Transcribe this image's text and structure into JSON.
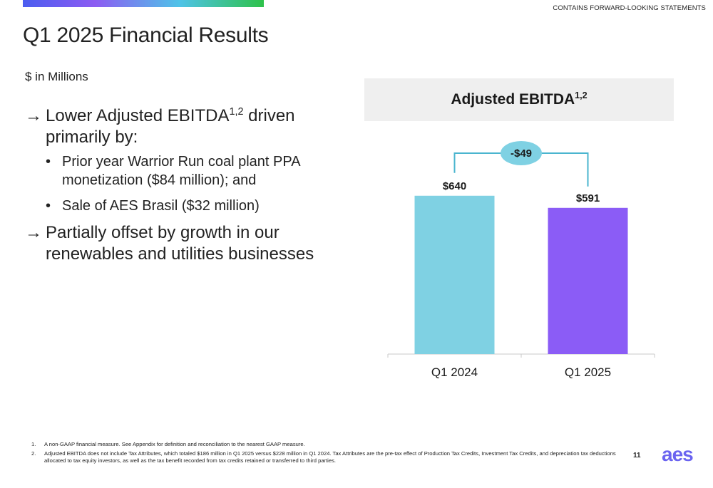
{
  "header": {
    "disclaimer": "CONTAINS FORWARD-LOOKING STATEMENTS",
    "title": "Q1 2025 Financial Results"
  },
  "units": "$ in Millions",
  "bullets": {
    "arrow_icon": "→",
    "bullet_icon": "•",
    "main1_pre": "Lower Adjusted EBITDA",
    "main1_sup": "1,2",
    "main1_post": " driven primarily by:",
    "sub": [
      "Prior year Warrior Run coal plant PPA monetization ($84 million); and",
      "Sale of AES Brasil ($32 million)"
    ],
    "main2": "Partially offset by growth in our renewables and utilities businesses"
  },
  "chart_data": {
    "type": "bar",
    "title": "Adjusted EBITDA",
    "title_sup": "1,2",
    "categories": [
      "Q1 2024",
      "Q1 2025"
    ],
    "values": [
      640,
      591
    ],
    "value_labels": [
      "$640",
      "$591"
    ],
    "colors": [
      "#7fd1e3",
      "#8b5cf6"
    ],
    "change_label": "-$49",
    "change_color": "#7fd1e3",
    "connector_color": "#4ab5cf",
    "ylim": [
      0,
      720
    ]
  },
  "footnotes": [
    {
      "num": "1.",
      "text": "A non-GAAP financial measure.  See Appendix for definition and reconciliation to the nearest GAAP measure."
    },
    {
      "num": "2.",
      "text": "Adjusted EBITDA does not include Tax Attributes, which totaled $186 million in Q1 2025 versus $228 million in Q1 2024. Tax Attributes are the pre-tax effect of Production Tax Credits, Investment Tax Credits, and depreciation tax deductions allocated to tax equity investors, as well as the tax benefit recorded from tax credits retained or transferred to third parties."
    }
  ],
  "page_number": "11",
  "logo_text": "aes"
}
